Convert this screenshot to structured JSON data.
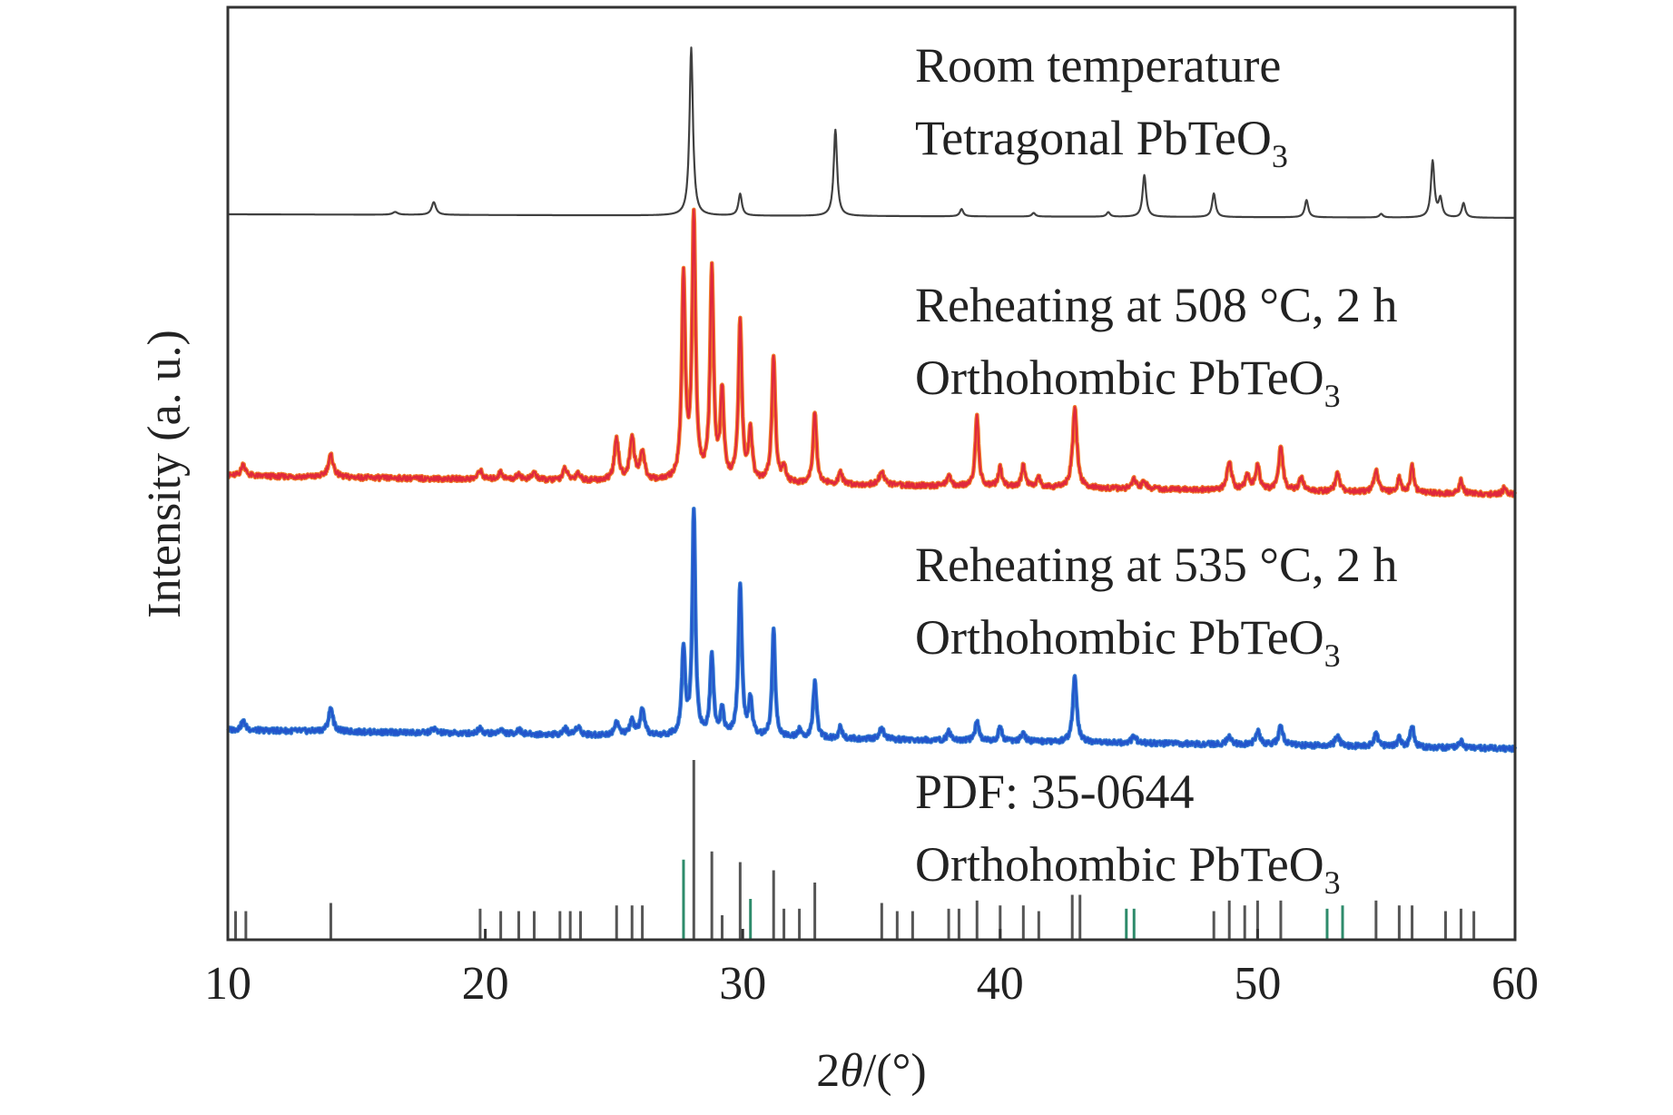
{
  "colors": {
    "frame": "#333333",
    "room": "#404040",
    "t508_a": "#e0283c",
    "t508_b": "#f07a2a",
    "t535_a": "#2255cc",
    "t535_b": "#3a7fd0",
    "pdf_gray": "#555555",
    "pdf_green": "#2e8b6b"
  },
  "chart_data": {
    "type": "line",
    "xlabel": {
      "prefix": "2",
      "italic": "θ",
      "suffix": "/(°)"
    },
    "ylabel": "Intensity (a. u.)",
    "xlim": [
      10,
      60
    ],
    "xticks": [
      10,
      20,
      30,
      40,
      50,
      60
    ],
    "grid": false,
    "series": [
      {
        "key": "room",
        "label_line1": "Room temperature",
        "label_line2_main": "Tetragonal PbTeO",
        "label_line2_sub": "3",
        "baseline": 0.9,
        "peaks": [
          [
            16.5,
            0.3,
            0.12
          ],
          [
            18.0,
            1.4,
            0.1
          ],
          [
            28.0,
            18.5,
            0.08
          ],
          [
            29.9,
            2.4,
            0.08
          ],
          [
            33.6,
            9.5,
            0.08
          ],
          [
            38.5,
            0.8,
            0.08
          ],
          [
            41.3,
            0.4,
            0.08
          ],
          [
            44.2,
            0.5,
            0.08
          ],
          [
            45.6,
            4.6,
            0.08
          ],
          [
            48.3,
            2.6,
            0.08
          ],
          [
            51.9,
            1.9,
            0.08
          ],
          [
            54.8,
            0.4,
            0.08
          ],
          [
            56.8,
            6.2,
            0.08
          ],
          [
            57.1,
            2.0,
            0.08
          ],
          [
            58.0,
            1.6,
            0.08
          ]
        ]
      },
      {
        "key": "t508",
        "label_line1": "Reheating at 508 °C, 2 h",
        "label_line2_main": "Orthohombic PbTeO",
        "label_line2_sub": "3",
        "baseline": 1.2,
        "peaks": [
          [
            10.6,
            0.8,
            0.1
          ],
          [
            14.0,
            1.5,
            0.12
          ],
          [
            19.8,
            0.6,
            0.1
          ],
          [
            20.6,
            0.5,
            0.1
          ],
          [
            21.3,
            0.4,
            0.1
          ],
          [
            21.9,
            0.5,
            0.1
          ],
          [
            23.1,
            0.8,
            0.1
          ],
          [
            23.6,
            0.5,
            0.1
          ],
          [
            25.1,
            2.8,
            0.1
          ],
          [
            25.7,
            3.0,
            0.1
          ],
          [
            26.1,
            2.0,
            0.1
          ],
          [
            27.7,
            14.0,
            0.08
          ],
          [
            28.1,
            18.0,
            0.08
          ],
          [
            28.8,
            14.5,
            0.08
          ],
          [
            29.2,
            6.0,
            0.08
          ],
          [
            29.9,
            11.0,
            0.08
          ],
          [
            30.3,
            3.5,
            0.08
          ],
          [
            31.2,
            8.8,
            0.08
          ],
          [
            31.6,
            1.0,
            0.08
          ],
          [
            32.8,
            5.0,
            0.08
          ],
          [
            33.8,
            0.8,
            0.08
          ],
          [
            35.4,
            0.9,
            0.12
          ],
          [
            38.0,
            0.8,
            0.08
          ],
          [
            39.1,
            4.8,
            0.08
          ],
          [
            40.0,
            1.3,
            0.08
          ],
          [
            40.9,
            1.5,
            0.08
          ],
          [
            41.5,
            0.7,
            0.08
          ],
          [
            42.9,
            5.5,
            0.1
          ],
          [
            45.2,
            0.6,
            0.1
          ],
          [
            45.6,
            0.5,
            0.1
          ],
          [
            48.9,
            2.0,
            0.1
          ],
          [
            49.6,
            1.0,
            0.1
          ],
          [
            50.0,
            1.7,
            0.1
          ],
          [
            50.9,
            3.0,
            0.1
          ],
          [
            51.7,
            0.9,
            0.1
          ],
          [
            53.1,
            1.2,
            0.1
          ],
          [
            54.6,
            1.5,
            0.1
          ],
          [
            55.5,
            1.0,
            0.08
          ],
          [
            56.0,
            1.8,
            0.08
          ],
          [
            57.9,
            0.9,
            0.08
          ],
          [
            59.6,
            0.5,
            0.08
          ]
        ]
      },
      {
        "key": "t535",
        "label_line1": "Reheating at 535 °C, 2 h",
        "label_line2_main": "Orthohombic PbTeO",
        "label_line2_sub": "3",
        "baseline": 1.2,
        "peaks": [
          [
            10.6,
            0.6,
            0.1
          ],
          [
            14.0,
            1.6,
            0.1
          ],
          [
            18.0,
            0.3,
            0.1
          ],
          [
            19.8,
            0.4,
            0.1
          ],
          [
            20.6,
            0.3,
            0.1
          ],
          [
            21.3,
            0.3,
            0.1
          ],
          [
            23.1,
            0.4,
            0.1
          ],
          [
            23.6,
            0.6,
            0.1
          ],
          [
            25.1,
            0.9,
            0.1
          ],
          [
            25.7,
            1.0,
            0.1
          ],
          [
            26.1,
            1.7,
            0.1
          ],
          [
            27.7,
            6.0,
            0.08
          ],
          [
            28.1,
            15.5,
            0.07
          ],
          [
            28.8,
            5.5,
            0.08
          ],
          [
            29.2,
            1.8,
            0.08
          ],
          [
            29.9,
            10.5,
            0.08
          ],
          [
            30.3,
            2.5,
            0.08
          ],
          [
            31.2,
            7.5,
            0.07
          ],
          [
            32.2,
            0.5,
            0.08
          ],
          [
            32.8,
            3.8,
            0.08
          ],
          [
            33.8,
            0.8,
            0.08
          ],
          [
            35.4,
            0.7,
            0.12
          ],
          [
            38.0,
            0.6,
            0.08
          ],
          [
            39.1,
            1.4,
            0.08
          ],
          [
            40.0,
            1.0,
            0.08
          ],
          [
            40.9,
            0.7,
            0.08
          ],
          [
            42.9,
            4.5,
            0.09
          ],
          [
            45.2,
            0.5,
            0.1
          ],
          [
            48.9,
            0.6,
            0.1
          ],
          [
            50.0,
            1.0,
            0.1
          ],
          [
            50.9,
            1.3,
            0.1
          ],
          [
            53.1,
            0.7,
            0.1
          ],
          [
            54.6,
            0.9,
            0.1
          ],
          [
            55.5,
            0.6,
            0.08
          ],
          [
            56.0,
            1.5,
            0.08
          ],
          [
            57.9,
            0.5,
            0.08
          ]
        ]
      }
    ],
    "reference": {
      "key": "pdf",
      "label_line1": "PDF: 35-0644",
      "label_line2_main": "Orthohombic PbTeO",
      "label_line2_sub": "3",
      "sticks": [
        [
          10.3,
          3.5,
          "gray"
        ],
        [
          10.7,
          3.5,
          "gray"
        ],
        [
          14.0,
          4.5,
          "gray"
        ],
        [
          19.8,
          3.8,
          "gray"
        ],
        [
          20.6,
          3.5,
          "gray"
        ],
        [
          21.3,
          3.5,
          "gray"
        ],
        [
          21.9,
          3.5,
          "gray"
        ],
        [
          22.9,
          3.5,
          "gray"
        ],
        [
          23.3,
          3.5,
          "gray"
        ],
        [
          23.7,
          3.5,
          "gray"
        ],
        [
          25.1,
          4.2,
          "gray"
        ],
        [
          25.7,
          4.2,
          "gray"
        ],
        [
          26.1,
          4.2,
          "gray"
        ],
        [
          27.7,
          9.8,
          "green"
        ],
        [
          28.1,
          22.0,
          "gray"
        ],
        [
          28.8,
          10.8,
          "gray"
        ],
        [
          29.2,
          3.0,
          "gray"
        ],
        [
          29.9,
          9.5,
          "gray"
        ],
        [
          30.3,
          5.0,
          "green"
        ],
        [
          31.2,
          8.5,
          "gray"
        ],
        [
          31.6,
          3.8,
          "gray"
        ],
        [
          32.2,
          3.8,
          "gray"
        ],
        [
          32.8,
          7.0,
          "gray"
        ],
        [
          35.4,
          4.5,
          "gray"
        ],
        [
          36.0,
          3.5,
          "gray"
        ],
        [
          36.6,
          3.5,
          "gray"
        ],
        [
          38.0,
          3.8,
          "gray"
        ],
        [
          38.4,
          3.8,
          "gray"
        ],
        [
          39.1,
          4.8,
          "gray"
        ],
        [
          40.0,
          4.2,
          "gray"
        ],
        [
          40.9,
          4.2,
          "gray"
        ],
        [
          41.5,
          3.5,
          "gray"
        ],
        [
          42.8,
          5.5,
          "gray"
        ],
        [
          43.1,
          5.5,
          "gray"
        ],
        [
          44.9,
          3.8,
          "green"
        ],
        [
          45.2,
          3.8,
          "green"
        ],
        [
          48.3,
          3.5,
          "gray"
        ],
        [
          48.9,
          4.8,
          "gray"
        ],
        [
          49.5,
          4.2,
          "gray"
        ],
        [
          50.0,
          4.8,
          "gray"
        ],
        [
          50.9,
          4.8,
          "gray"
        ],
        [
          52.7,
          3.8,
          "green"
        ],
        [
          53.3,
          4.2,
          "green"
        ],
        [
          54.6,
          4.8,
          "gray"
        ],
        [
          55.5,
          4.2,
          "gray"
        ],
        [
          56.0,
          4.2,
          "gray"
        ],
        [
          57.3,
          3.5,
          "gray"
        ],
        [
          57.9,
          3.8,
          "gray"
        ],
        [
          58.4,
          3.5,
          "gray"
        ]
      ]
    }
  }
}
